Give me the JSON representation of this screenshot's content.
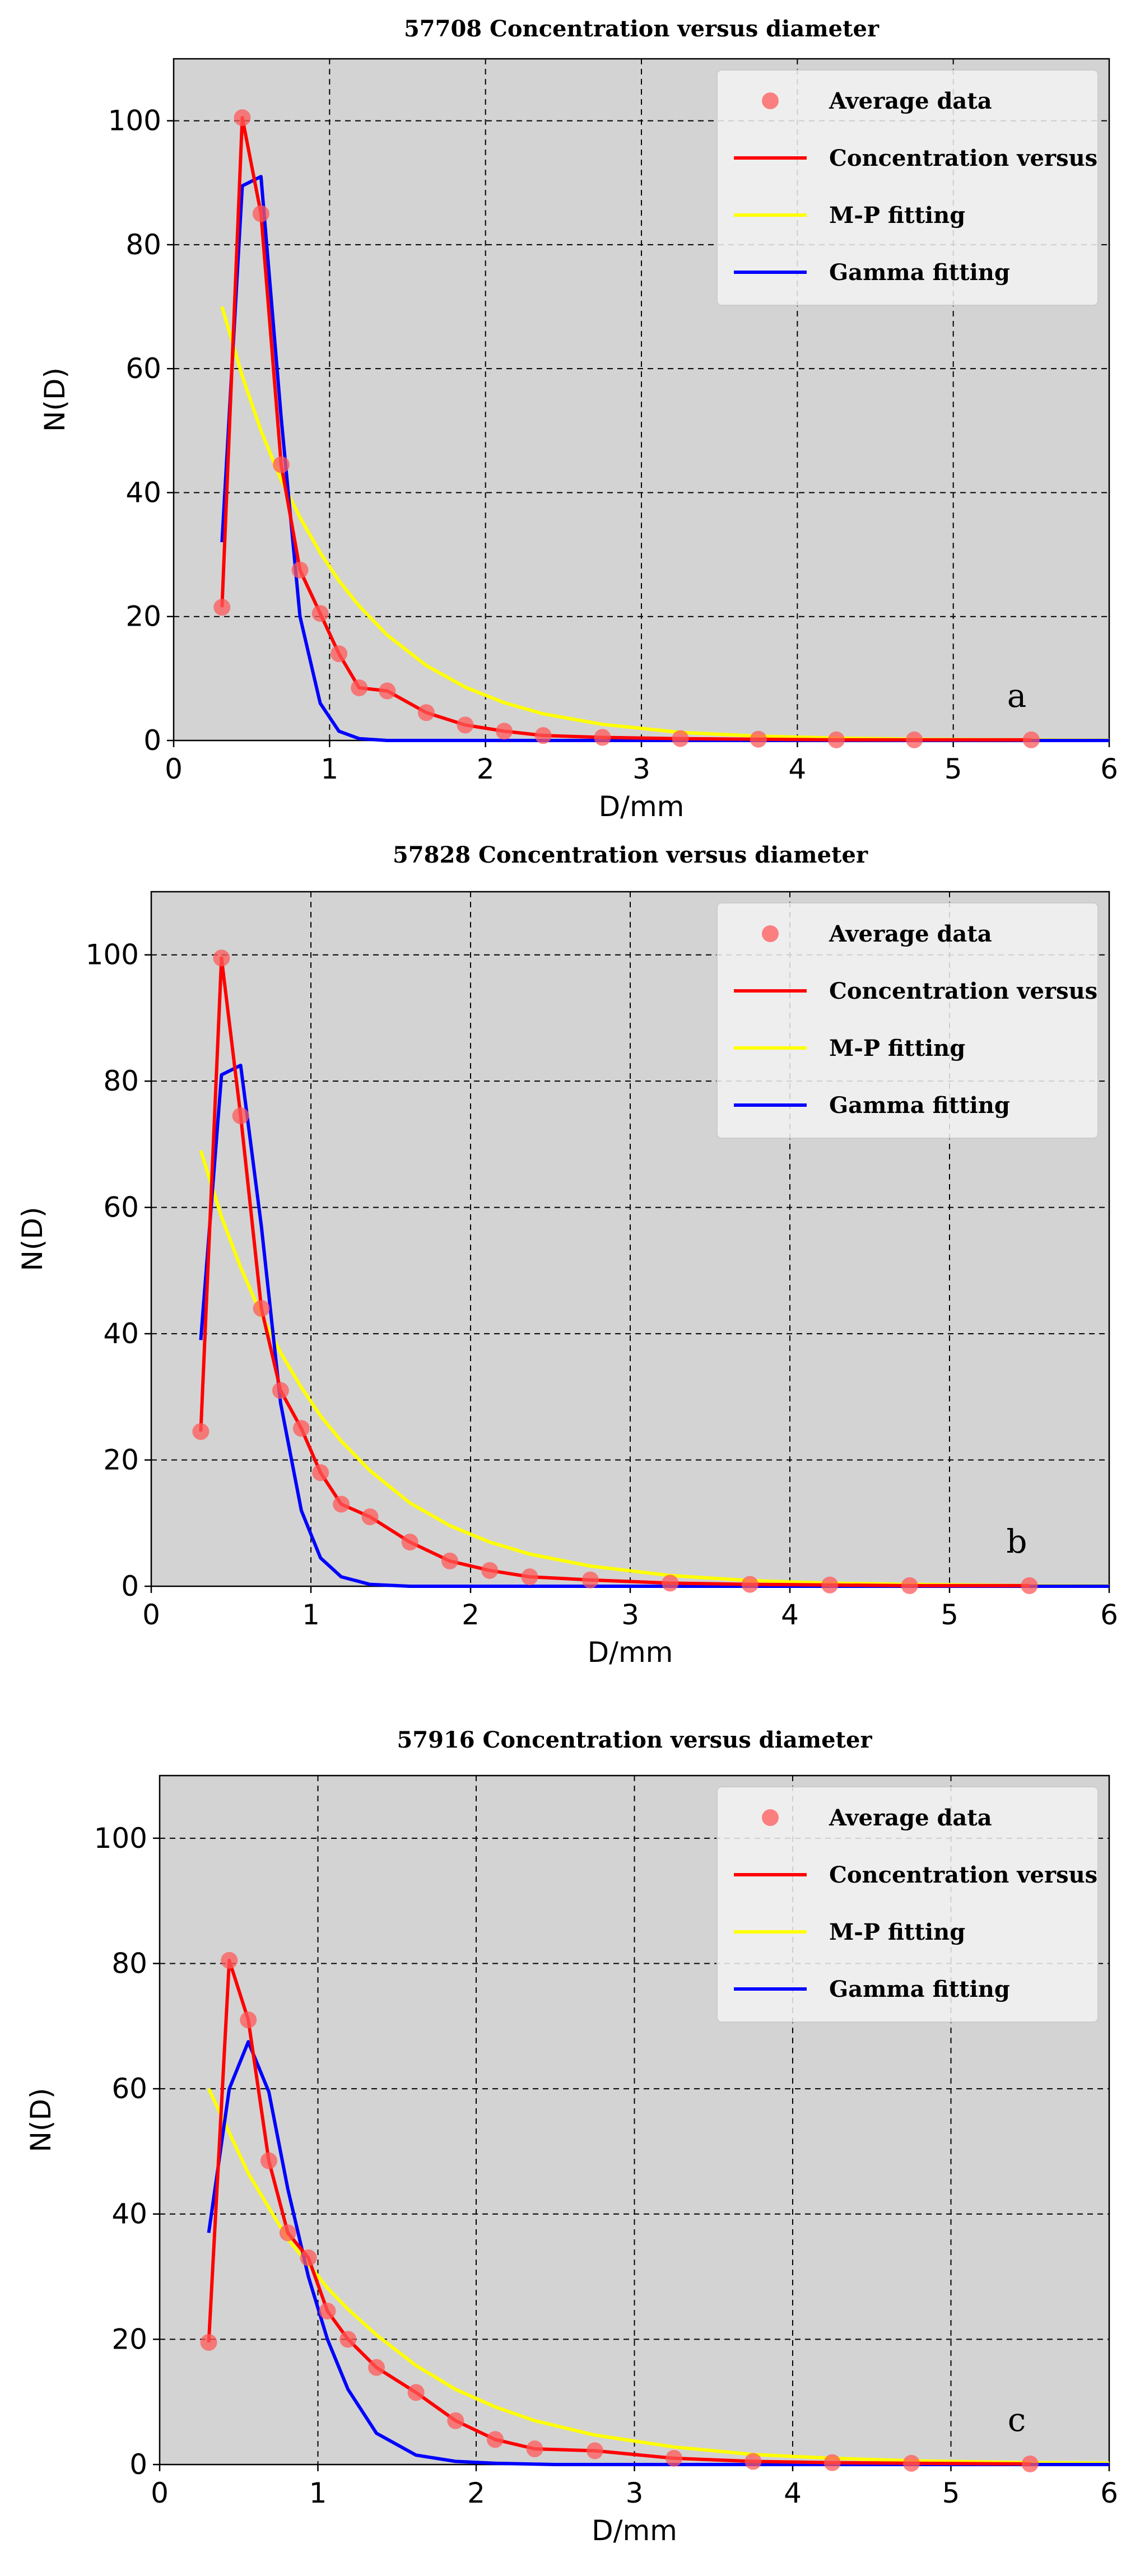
{
  "figure": {
    "colors": {
      "plot_background": "#d3d3d3",
      "grid": "#000000",
      "average_marker": "#ff5a5a",
      "concentration_line": "#ff0000",
      "mp_line": "#ffff00",
      "gamma_line": "#0000ff"
    }
  },
  "chart_data": [
    {
      "type": "line",
      "title": "57708 Concentration versus diameter",
      "xlabel": "D/mm",
      "ylabel": "N(D)",
      "xlim": [
        0,
        6
      ],
      "ylim": [
        0,
        110
      ],
      "xticks": [
        0,
        1,
        2,
        3,
        4,
        5,
        6
      ],
      "yticks": [
        0,
        20,
        40,
        60,
        80,
        100
      ],
      "grid": true,
      "legend_position": "top-right",
      "panel_label": "a",
      "legend": [
        "Average data",
        "Concentration versus",
        "M-P fitting",
        "Gamma fitting"
      ],
      "series": [
        {
          "name": "Average data",
          "kind": "scatter",
          "x": [
            0.31,
            0.44,
            0.56,
            0.69,
            0.81,
            0.94,
            1.06,
            1.19,
            1.37,
            1.62,
            1.87,
            2.12,
            2.37,
            2.75,
            3.25,
            3.75,
            4.25,
            4.75,
            5.5
          ],
          "y": [
            21.5,
            100.5,
            85,
            44.5,
            27.5,
            20.5,
            14,
            8.5,
            8,
            4.5,
            2.5,
            1.5,
            0.8,
            0.5,
            0.3,
            0.2,
            0.1,
            0.1,
            0.1
          ]
        },
        {
          "name": "Concentration versus",
          "kind": "line",
          "x": [
            0.31,
            0.44,
            0.56,
            0.69,
            0.81,
            0.94,
            1.06,
            1.19,
            1.37,
            1.62,
            1.87,
            2.12,
            2.37,
            2.75,
            3.25,
            3.75,
            4.25,
            4.75,
            5.5
          ],
          "y": [
            21.5,
            100.5,
            85,
            44.5,
            27.5,
            20.5,
            14,
            8.5,
            8,
            4.5,
            2.5,
            1.5,
            0.8,
            0.5,
            0.3,
            0.2,
            0.1,
            0.1,
            0.1
          ]
        },
        {
          "name": "M-P fitting",
          "kind": "line",
          "x": [
            0.31,
            0.44,
            0.56,
            0.69,
            0.81,
            0.94,
            1.06,
            1.19,
            1.37,
            1.62,
            1.87,
            2.12,
            2.37,
            2.75,
            3.25,
            3.75,
            4.25,
            4.75,
            5.5,
            6.0
          ],
          "y": [
            70,
            58.8,
            50,
            42,
            36,
            30.3,
            25.8,
            21.7,
            17,
            12.1,
            8.6,
            6.1,
            4.3,
            2.6,
            1.3,
            0.7,
            0.4,
            0.2,
            0.1,
            0.05
          ]
        },
        {
          "name": "Gamma fitting",
          "kind": "line",
          "x": [
            0.31,
            0.44,
            0.56,
            0.69,
            0.81,
            0.94,
            1.06,
            1.19,
            1.37,
            1.62,
            2.0,
            3.0,
            4.0,
            5.0,
            6.0
          ],
          "y": [
            32,
            89.5,
            91,
            52,
            20,
            6,
            1.5,
            0.3,
            0,
            0,
            0,
            0,
            0,
            0,
            0
          ]
        }
      ]
    },
    {
      "type": "line",
      "title": "57828 Concentration versus diameter",
      "xlabel": "D/mm",
      "ylabel": "N(D)",
      "xlim": [
        0,
        6
      ],
      "ylim": [
        0,
        110
      ],
      "xticks": [
        0,
        1,
        2,
        3,
        4,
        5,
        6
      ],
      "yticks": [
        0,
        20,
        40,
        60,
        80,
        100
      ],
      "grid": true,
      "legend_position": "top-right",
      "panel_label": "b",
      "legend": [
        "Average data",
        "Concentration versus",
        "M-P fitting",
        "Gamma fitting"
      ],
      "series": [
        {
          "name": "Average data",
          "kind": "scatter",
          "x": [
            0.31,
            0.44,
            0.56,
            0.69,
            0.81,
            0.94,
            1.06,
            1.19,
            1.37,
            1.62,
            1.87,
            2.12,
            2.37,
            2.75,
            3.25,
            3.75,
            4.25,
            4.75,
            5.5
          ],
          "y": [
            24.5,
            99.5,
            74.5,
            44,
            31,
            25,
            18,
            13,
            11,
            7,
            4,
            2.5,
            1.5,
            1,
            0.5,
            0.3,
            0.2,
            0.1,
            0.1
          ]
        },
        {
          "name": "Concentration versus",
          "kind": "line",
          "x": [
            0.31,
            0.44,
            0.56,
            0.69,
            0.81,
            0.94,
            1.06,
            1.19,
            1.37,
            1.62,
            1.87,
            2.12,
            2.37,
            2.75,
            3.25,
            3.75,
            4.25,
            4.75,
            5.5
          ],
          "y": [
            24.5,
            99.5,
            74.5,
            44,
            31,
            25,
            18,
            13,
            11,
            7,
            4,
            2.5,
            1.5,
            1,
            0.5,
            0.3,
            0.2,
            0.1,
            0.1
          ]
        },
        {
          "name": "M-P fitting",
          "kind": "line",
          "x": [
            0.31,
            0.44,
            0.56,
            0.69,
            0.81,
            0.94,
            1.06,
            1.19,
            1.37,
            1.62,
            1.87,
            2.12,
            2.37,
            2.75,
            3.25,
            3.75,
            4.25,
            4.75,
            5.5,
            6.0
          ],
          "y": [
            69,
            58.5,
            50.5,
            43,
            37,
            31.5,
            27,
            23,
            18.3,
            13.2,
            9.6,
            7,
            5.1,
            3.2,
            1.7,
            0.9,
            0.5,
            0.3,
            0.1,
            0.05
          ]
        },
        {
          "name": "Gamma fitting",
          "kind": "line",
          "x": [
            0.31,
            0.44,
            0.56,
            0.69,
            0.81,
            0.94,
            1.06,
            1.19,
            1.37,
            1.62,
            2.0,
            3.0,
            4.0,
            5.0,
            6.0
          ],
          "y": [
            39,
            81,
            82.5,
            57,
            29,
            12,
            4.5,
            1.5,
            0.3,
            0,
            0,
            0,
            0,
            0,
            0
          ]
        }
      ]
    },
    {
      "type": "line",
      "title": "57916 Concentration versus diameter",
      "xlabel": "D/mm",
      "ylabel": "N(D)",
      "xlim": [
        0,
        6
      ],
      "ylim": [
        0,
        110
      ],
      "xticks": [
        0,
        1,
        2,
        3,
        4,
        5,
        6
      ],
      "yticks": [
        0,
        20,
        40,
        60,
        80,
        100
      ],
      "grid": true,
      "legend_position": "top-right",
      "panel_label": "c",
      "legend": [
        "Average data",
        "Concentration versus",
        "M-P fitting",
        "Gamma fitting"
      ],
      "series": [
        {
          "name": "Average data",
          "kind": "scatter",
          "x": [
            0.31,
            0.44,
            0.56,
            0.69,
            0.81,
            0.94,
            1.06,
            1.19,
            1.37,
            1.62,
            1.87,
            2.12,
            2.37,
            2.75,
            3.25,
            3.75,
            4.25,
            4.75,
            5.5
          ],
          "y": [
            19.5,
            80.5,
            71,
            48.5,
            37,
            33,
            24.5,
            20,
            15.5,
            11.5,
            7,
            4,
            2.5,
            2.2,
            1,
            0.5,
            0.3,
            0.2,
            0.1
          ]
        },
        {
          "name": "Concentration versus",
          "kind": "line",
          "x": [
            0.31,
            0.44,
            0.56,
            0.69,
            0.81,
            0.94,
            1.06,
            1.19,
            1.37,
            1.62,
            1.87,
            2.12,
            2.37,
            2.75,
            3.25,
            3.75,
            4.25,
            4.75,
            5.5
          ],
          "y": [
            19.5,
            80.5,
            71,
            48.5,
            37,
            33,
            24.5,
            20,
            15.5,
            11.5,
            7,
            4,
            2.5,
            2.2,
            1,
            0.5,
            0.3,
            0.2,
            0.1
          ]
        },
        {
          "name": "M-P fitting",
          "kind": "line",
          "x": [
            0.31,
            0.44,
            0.56,
            0.69,
            0.81,
            0.94,
            1.06,
            1.19,
            1.37,
            1.62,
            1.87,
            2.12,
            2.37,
            2.75,
            3.25,
            3.75,
            4.25,
            4.75,
            5.5,
            6.0
          ],
          "y": [
            60,
            53,
            46.5,
            41,
            36,
            32,
            28.2,
            24.8,
            20.7,
            15.8,
            12,
            9.2,
            7,
            4.7,
            2.8,
            1.6,
            1,
            0.6,
            0.3,
            0.2
          ]
        },
        {
          "name": "Gamma fitting",
          "kind": "line",
          "x": [
            0.31,
            0.44,
            0.56,
            0.69,
            0.81,
            0.94,
            1.06,
            1.19,
            1.37,
            1.62,
            1.87,
            2.12,
            2.5,
            3.0,
            4.0,
            5.0,
            6.0
          ],
          "y": [
            37,
            60,
            67.5,
            59.5,
            44,
            30,
            20,
            12,
            5,
            1.5,
            0.5,
            0.2,
            0,
            0,
            0,
            0,
            0
          ]
        }
      ]
    }
  ]
}
